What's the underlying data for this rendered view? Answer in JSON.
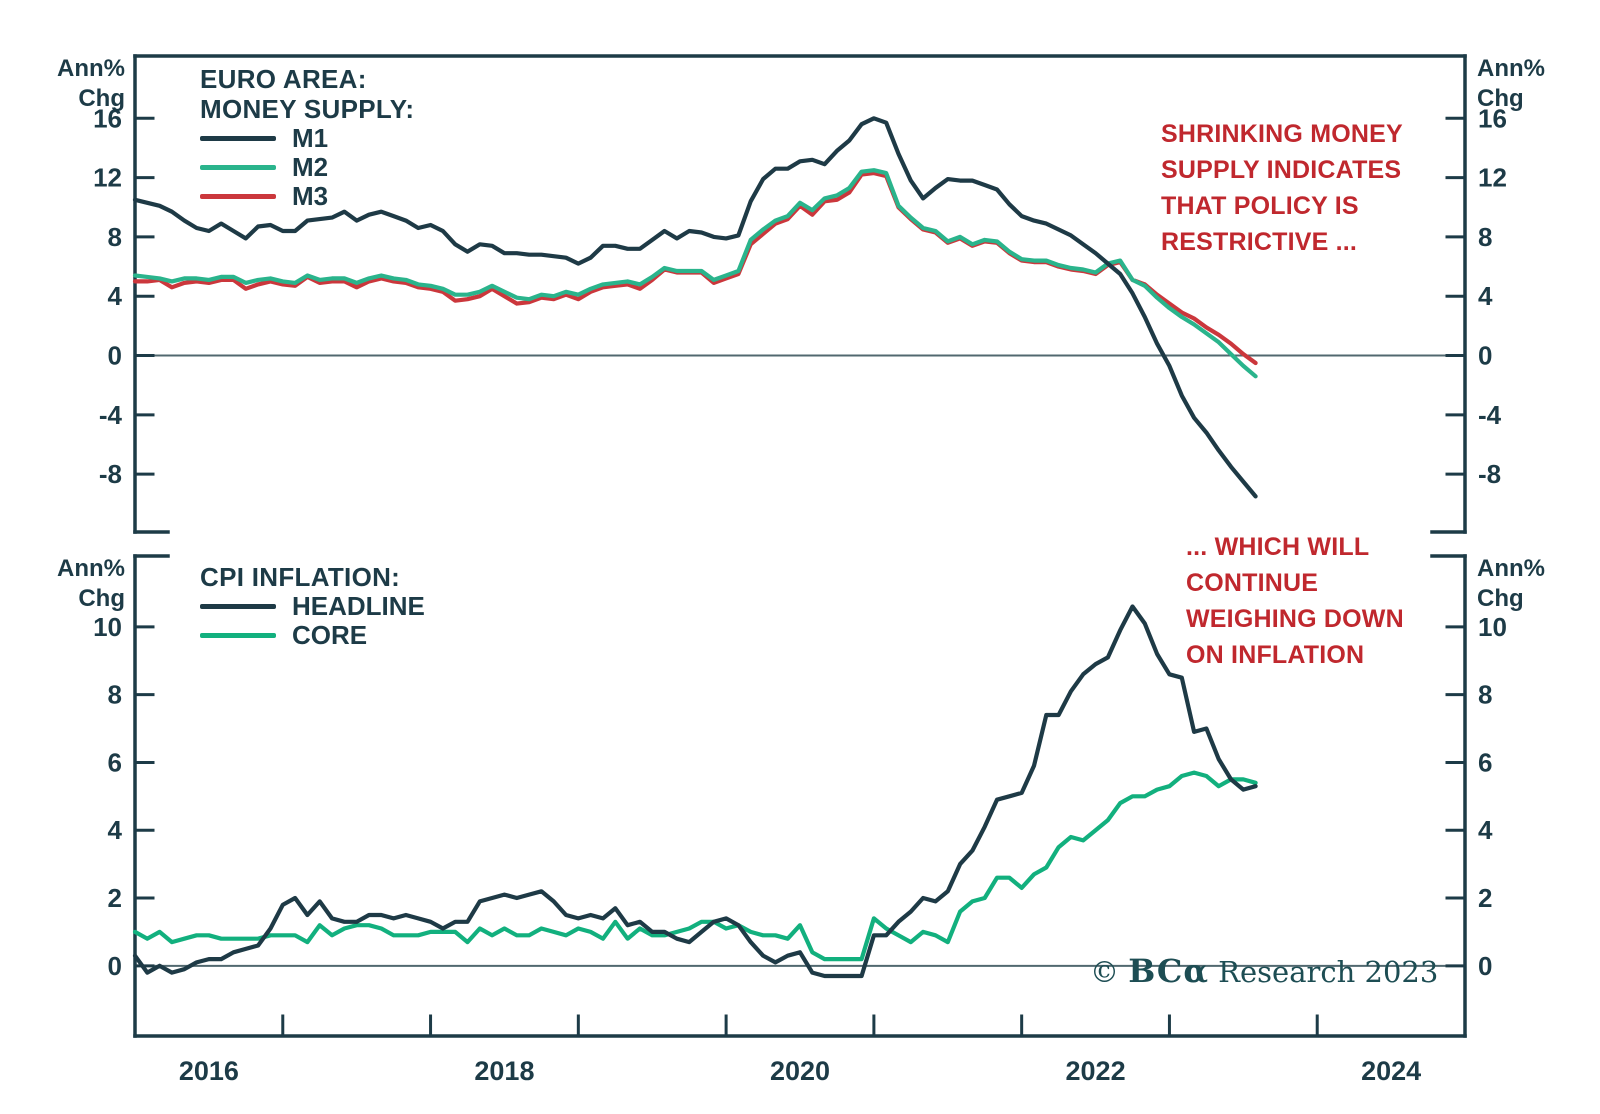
{
  "page": {
    "background": "#ffffff"
  },
  "copyright": {
    "symbol": "© ",
    "brand": "BCα",
    "rest": " Research 2023"
  },
  "chart_data": [
    {
      "type": "line",
      "panel": "top",
      "title_lines": [
        "EURO AREA:",
        "MONEY SUPPLY:"
      ],
      "unit_label_lines": [
        "Ann%",
        "Chg"
      ],
      "xlim": [
        2016.0,
        2025.0
      ],
      "ylim": [
        -11.9,
        20.2
      ],
      "yticks": [
        16,
        12,
        8,
        4,
        0,
        -4,
        -8
      ],
      "xticks": [
        2016,
        2017,
        2018,
        2019,
        2020,
        2021,
        2022,
        2023,
        2024
      ],
      "x_year_labels": [
        {
          "text": "2016",
          "x": 2016.5
        },
        {
          "text": "2018",
          "x": 2018.5
        },
        {
          "text": "2020",
          "x": 2020.5
        },
        {
          "text": "2022",
          "x": 2022.5
        },
        {
          "text": "2024",
          "x": 2024.5
        }
      ],
      "zero_line": true,
      "x_start": 2016.0,
      "x_step_months": 1,
      "series": [
        {
          "name": "M1",
          "color": "#1e3a46",
          "values": [
            10.5,
            10.3,
            10.1,
            9.7,
            9.1,
            8.6,
            8.4,
            8.9,
            8.4,
            7.9,
            8.7,
            8.8,
            8.4,
            8.4,
            9.1,
            9.2,
            9.3,
            9.7,
            9.1,
            9.5,
            9.7,
            9.4,
            9.1,
            8.6,
            8.8,
            8.4,
            7.5,
            7.0,
            7.5,
            7.4,
            6.9,
            6.9,
            6.8,
            6.8,
            6.7,
            6.6,
            6.2,
            6.6,
            7.4,
            7.4,
            7.2,
            7.2,
            7.8,
            8.4,
            7.9,
            8.4,
            8.3,
            8.0,
            7.9,
            8.1,
            10.4,
            11.9,
            12.6,
            12.6,
            13.1,
            13.2,
            12.9,
            13.8,
            14.5,
            15.6,
            16.0,
            15.7,
            13.6,
            11.8,
            10.6,
            11.3,
            11.9,
            11.8,
            11.8,
            11.5,
            11.2,
            10.2,
            9.4,
            9.1,
            8.9,
            8.5,
            8.1,
            7.5,
            6.9,
            6.2,
            5.5,
            4.2,
            2.6,
            0.8,
            -0.7,
            -2.7,
            -4.2,
            -5.2,
            -6.4,
            -7.5,
            -8.5,
            -9.5
          ]
        },
        {
          "name": "M2",
          "color": "#2ab48c",
          "values": [
            5.4,
            5.3,
            5.2,
            5.0,
            5.2,
            5.2,
            5.1,
            5.3,
            5.3,
            4.9,
            5.1,
            5.2,
            5.0,
            4.9,
            5.4,
            5.1,
            5.2,
            5.2,
            4.9,
            5.2,
            5.4,
            5.2,
            5.1,
            4.8,
            4.7,
            4.5,
            4.1,
            4.1,
            4.3,
            4.7,
            4.3,
            3.9,
            3.8,
            4.1,
            4.0,
            4.3,
            4.1,
            4.5,
            4.8,
            4.9,
            5.0,
            4.8,
            5.3,
            5.9,
            5.7,
            5.7,
            5.7,
            5.1,
            5.4,
            5.7,
            7.8,
            8.5,
            9.1,
            9.4,
            10.3,
            9.8,
            10.6,
            10.8,
            11.3,
            12.4,
            12.5,
            12.3,
            10.1,
            9.3,
            8.6,
            8.4,
            7.7,
            8.0,
            7.5,
            7.8,
            7.7,
            7.0,
            6.5,
            6.4,
            6.4,
            6.1,
            5.9,
            5.8,
            5.6,
            6.2,
            6.4,
            5.1,
            4.7,
            3.9,
            3.2,
            2.6,
            2.1,
            1.5,
            0.9,
            0.1,
            -0.7,
            -1.4
          ]
        },
        {
          "name": "M3",
          "color": "#cb373c",
          "values": [
            5.0,
            5.0,
            5.1,
            4.6,
            4.9,
            5.0,
            4.9,
            5.1,
            5.1,
            4.5,
            4.8,
            5.0,
            4.8,
            4.7,
            5.3,
            4.9,
            5.0,
            5.0,
            4.6,
            5.0,
            5.2,
            5.0,
            4.9,
            4.6,
            4.5,
            4.3,
            3.7,
            3.8,
            4.0,
            4.5,
            4.0,
            3.5,
            3.6,
            3.9,
            3.8,
            4.1,
            3.8,
            4.3,
            4.6,
            4.7,
            4.8,
            4.5,
            5.1,
            5.8,
            5.6,
            5.6,
            5.6,
            4.9,
            5.2,
            5.5,
            7.5,
            8.2,
            8.9,
            9.2,
            10.1,
            9.5,
            10.4,
            10.5,
            11.0,
            12.2,
            12.3,
            12.1,
            10.0,
            9.2,
            8.5,
            8.3,
            7.6,
            7.9,
            7.4,
            7.7,
            7.6,
            6.9,
            6.4,
            6.3,
            6.3,
            6.0,
            5.8,
            5.7,
            5.5,
            6.1,
            6.3,
            5.1,
            4.8,
            4.1,
            3.5,
            2.9,
            2.5,
            1.9,
            1.4,
            0.8,
            0.1,
            -0.5
          ]
        }
      ],
      "annotation": {
        "color": "#c0282e",
        "lines": [
          "SHRINKING MONEY",
          "SUPPLY INDICATES",
          "THAT POLICY IS",
          "RESTRICTIVE ..."
        ]
      }
    },
    {
      "type": "line",
      "panel": "bottom",
      "title_lines": [
        "CPI INFLATION:"
      ],
      "unit_label_lines": [
        "Ann%",
        "Chg"
      ],
      "xlim": [
        2016.0,
        2025.0
      ],
      "ylim": [
        -2.07,
        12.09
      ],
      "yticks": [
        10,
        8,
        6,
        4,
        2,
        0
      ],
      "xticks": [
        2016,
        2017,
        2018,
        2019,
        2020,
        2021,
        2022,
        2023,
        2024
      ],
      "x_year_labels": [
        {
          "text": "2016",
          "x": 2016.5
        },
        {
          "text": "2018",
          "x": 2018.5
        },
        {
          "text": "2020",
          "x": 2020.5
        },
        {
          "text": "2022",
          "x": 2022.5
        },
        {
          "text": "2024",
          "x": 2024.5
        }
      ],
      "zero_line": true,
      "x_start": 2016.0,
      "x_step_months": 1,
      "series": [
        {
          "name": "HEADLINE",
          "color": "#1e3a46",
          "values": [
            0.3,
            -0.2,
            0.0,
            -0.2,
            -0.1,
            0.1,
            0.2,
            0.2,
            0.4,
            0.5,
            0.6,
            1.1,
            1.8,
            2.0,
            1.5,
            1.9,
            1.4,
            1.3,
            1.3,
            1.5,
            1.5,
            1.4,
            1.5,
            1.4,
            1.3,
            1.1,
            1.3,
            1.3,
            1.9,
            2.0,
            2.1,
            2.0,
            2.1,
            2.2,
            1.9,
            1.5,
            1.4,
            1.5,
            1.4,
            1.7,
            1.2,
            1.3,
            1.0,
            1.0,
            0.8,
            0.7,
            1.0,
            1.3,
            1.4,
            1.2,
            0.7,
            0.3,
            0.1,
            0.3,
            0.4,
            -0.2,
            -0.3,
            -0.3,
            -0.3,
            -0.3,
            0.9,
            0.9,
            1.3,
            1.6,
            2.0,
            1.9,
            2.2,
            3.0,
            3.4,
            4.1,
            4.9,
            5.0,
            5.1,
            5.9,
            7.4,
            7.4,
            8.1,
            8.6,
            8.9,
            9.1,
            9.9,
            10.6,
            10.1,
            9.2,
            8.6,
            8.5,
            6.9,
            7.0,
            6.1,
            5.5,
            5.2,
            5.3
          ]
        },
        {
          "name": "CORE",
          "color": "#12b07e",
          "values": [
            1.0,
            0.8,
            1.0,
            0.7,
            0.8,
            0.9,
            0.9,
            0.8,
            0.8,
            0.8,
            0.8,
            0.9,
            0.9,
            0.9,
            0.7,
            1.2,
            0.9,
            1.1,
            1.2,
            1.2,
            1.1,
            0.9,
            0.9,
            0.9,
            1.0,
            1.0,
            1.0,
            0.7,
            1.1,
            0.9,
            1.1,
            0.9,
            0.9,
            1.1,
            1.0,
            0.9,
            1.1,
            1.0,
            0.8,
            1.3,
            0.8,
            1.1,
            0.9,
            0.9,
            1.0,
            1.1,
            1.3,
            1.3,
            1.1,
            1.2,
            1.0,
            0.9,
            0.9,
            0.8,
            1.2,
            0.4,
            0.2,
            0.2,
            0.2,
            0.2,
            1.4,
            1.1,
            0.9,
            0.7,
            1.0,
            0.9,
            0.7,
            1.6,
            1.9,
            2.0,
            2.6,
            2.6,
            2.3,
            2.7,
            2.9,
            3.5,
            3.8,
            3.7,
            4.0,
            4.3,
            4.8,
            5.0,
            5.0,
            5.2,
            5.3,
            5.6,
            5.7,
            5.6,
            5.3,
            5.5,
            5.5,
            5.4
          ]
        }
      ],
      "annotation": {
        "color": "#c0282e",
        "lines": [
          "... WHICH WILL",
          "CONTINUE",
          "WEIGHING DOWN",
          "ON INFLATION"
        ]
      }
    }
  ]
}
